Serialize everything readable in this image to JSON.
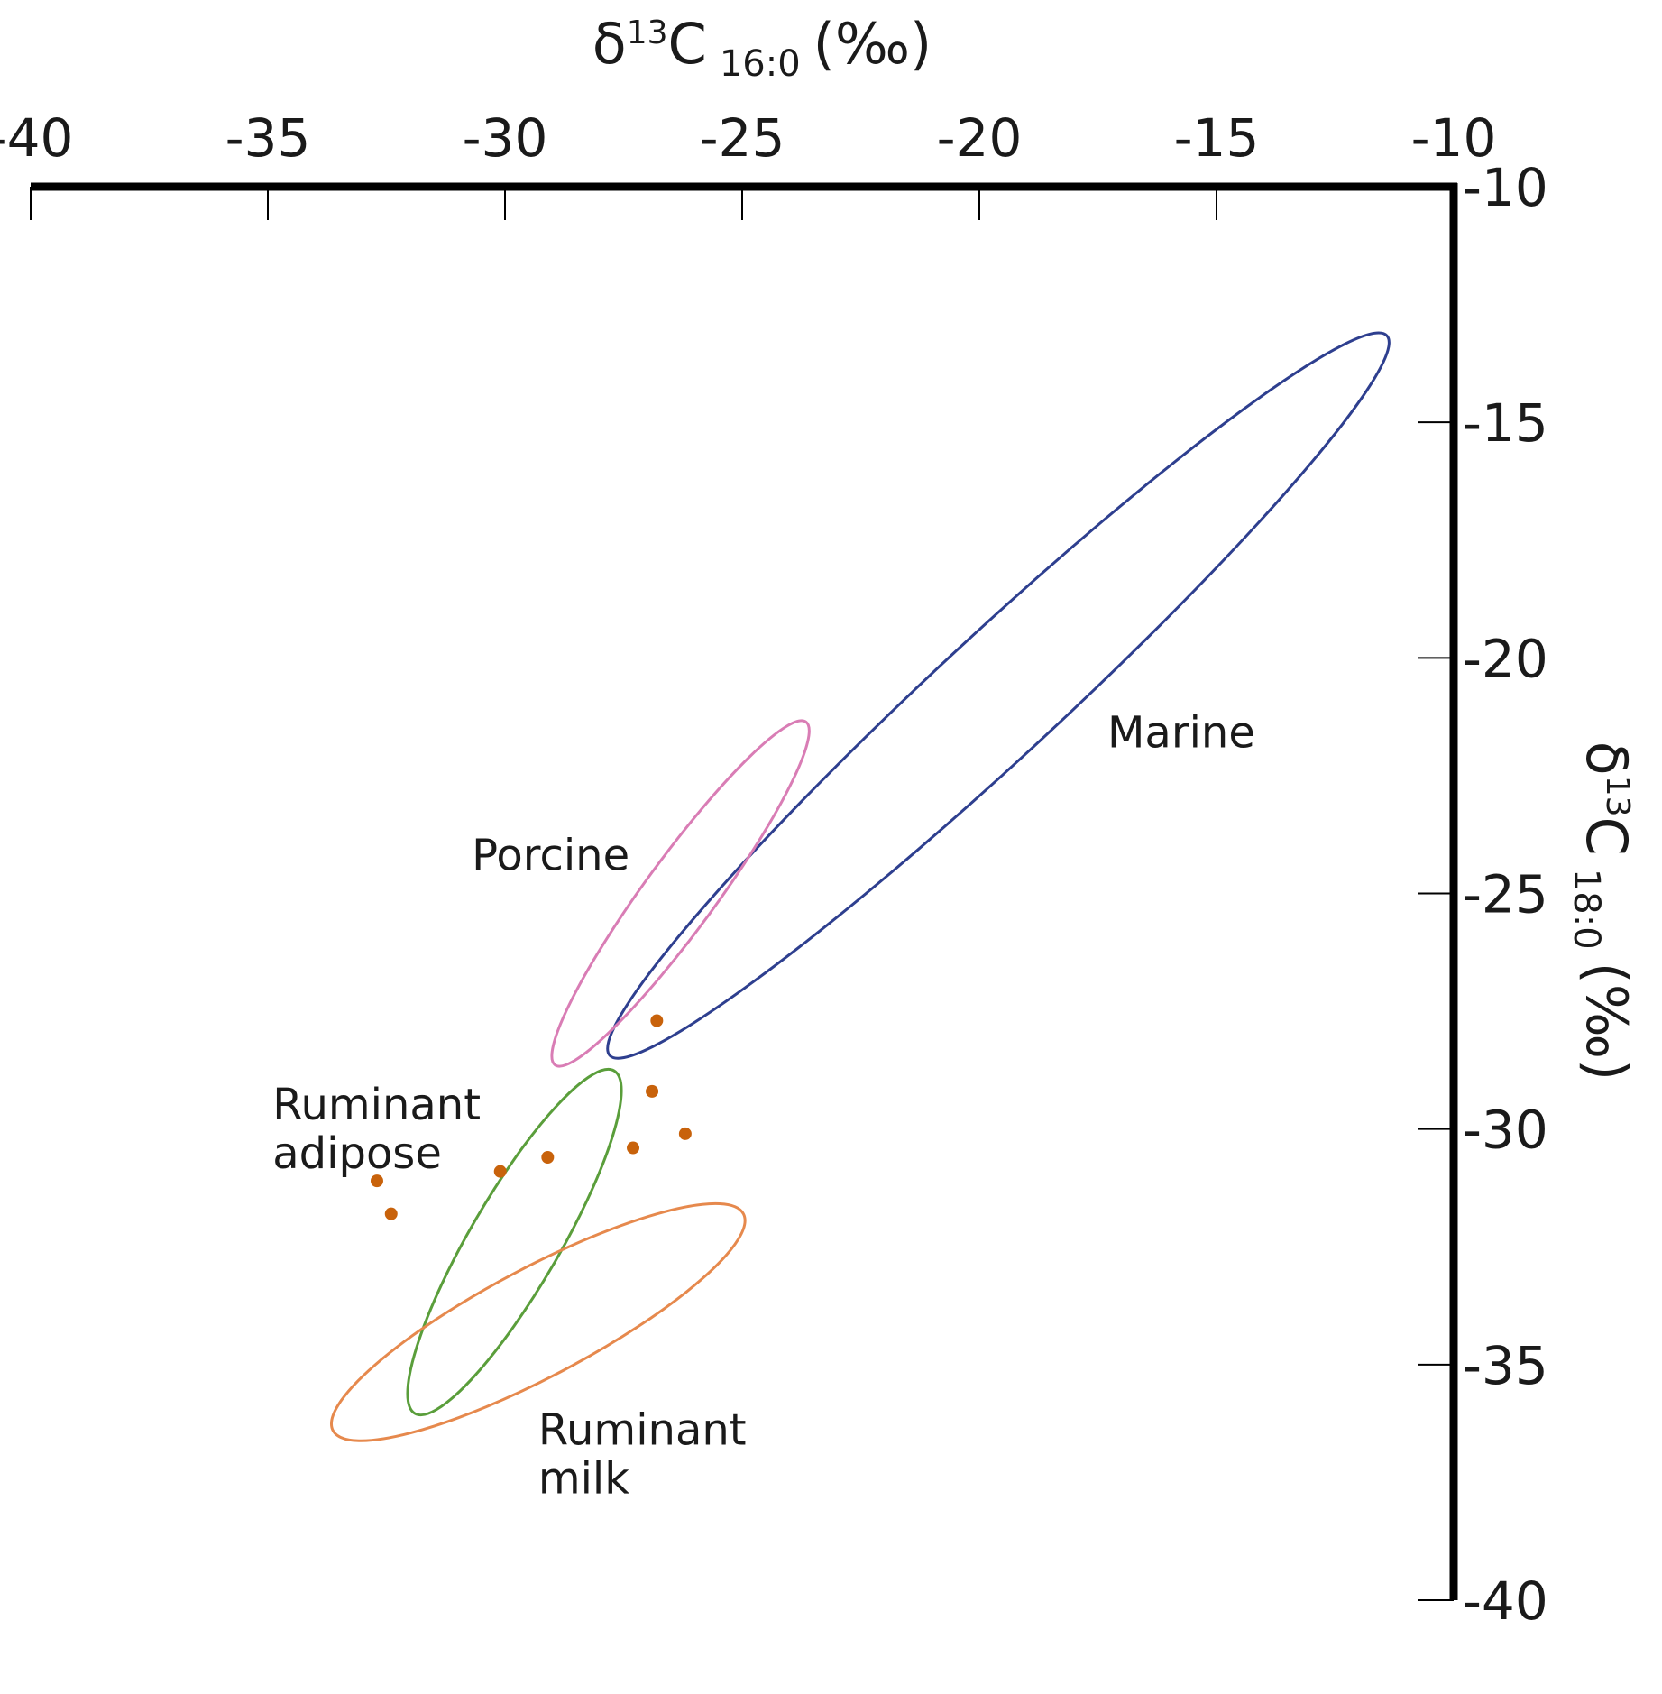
{
  "chart_data": {
    "type": "scatter",
    "x_axis": {
      "label_prefix": "δ",
      "label_sup": "13",
      "label_main": "C",
      "label_sub": "16:0",
      "label_unit": "(‰)",
      "position": "top",
      "range": [
        -40,
        -10
      ],
      "ticks": [
        -40,
        -35,
        -30,
        -25,
        -20,
        -15,
        -10
      ],
      "tick_labels": [
        "-40",
        "-35",
        "-30",
        "-25",
        "-20",
        "-15",
        "-10"
      ]
    },
    "y_axis": {
      "label_prefix": "δ",
      "label_sup": "13",
      "label_main": "C",
      "label_sub": "18:0",
      "label_unit": "(‰)",
      "position": "right",
      "range": [
        -40,
        -10
      ],
      "ticks": [
        -10,
        -15,
        -20,
        -25,
        -30,
        -35,
        -40
      ],
      "tick_labels": [
        "-10",
        "-15",
        "-20",
        "-25",
        "-30",
        "-35",
        "-40"
      ]
    },
    "regions": [
      {
        "name": "marine",
        "label_lines": [
          "Marine"
        ],
        "color": "#2e3f8f",
        "center": [
          -19.6,
          -20.8
        ],
        "semi_major": 11.2,
        "semi_minor": 1.3,
        "angle_deg": 43,
        "label_at": [
          -17.3,
          -21.9
        ]
      },
      {
        "name": "porcine",
        "label_lines": [
          "Porcine"
        ],
        "color": "#d97db5",
        "center": [
          -26.3,
          -25.0
        ],
        "semi_major": 4.5,
        "semi_minor": 0.75,
        "angle_deg": 54,
        "label_at": [
          -30.7,
          -24.5
        ]
      },
      {
        "name": "ruminant-adipose",
        "label_lines": [
          "Ruminant",
          "adipose"
        ],
        "color": "#5a9e3b",
        "center": [
          -29.8,
          -32.4
        ],
        "semi_major": 4.2,
        "semi_minor": 0.95,
        "angle_deg": 60,
        "label_at": [
          -34.9,
          -29.8
        ]
      },
      {
        "name": "ruminant-milk",
        "label_lines": [
          "Ruminant",
          "milk"
        ],
        "color": "#e6894d",
        "center": [
          -29.3,
          -34.1
        ],
        "semi_major": 4.9,
        "semi_minor": 1.15,
        "angle_deg": 28,
        "label_at": [
          -29.3,
          -36.7
        ]
      }
    ],
    "points": {
      "color": "#c8620b",
      "values": [
        [
          -26.8,
          -27.7
        ],
        [
          -26.9,
          -29.2
        ],
        [
          -26.2,
          -30.1
        ],
        [
          -27.3,
          -30.4
        ],
        [
          -29.1,
          -30.6
        ],
        [
          -30.1,
          -30.9
        ],
        [
          -32.7,
          -31.1
        ],
        [
          -32.4,
          -31.8
        ]
      ]
    },
    "grid": false,
    "legend": "none"
  }
}
